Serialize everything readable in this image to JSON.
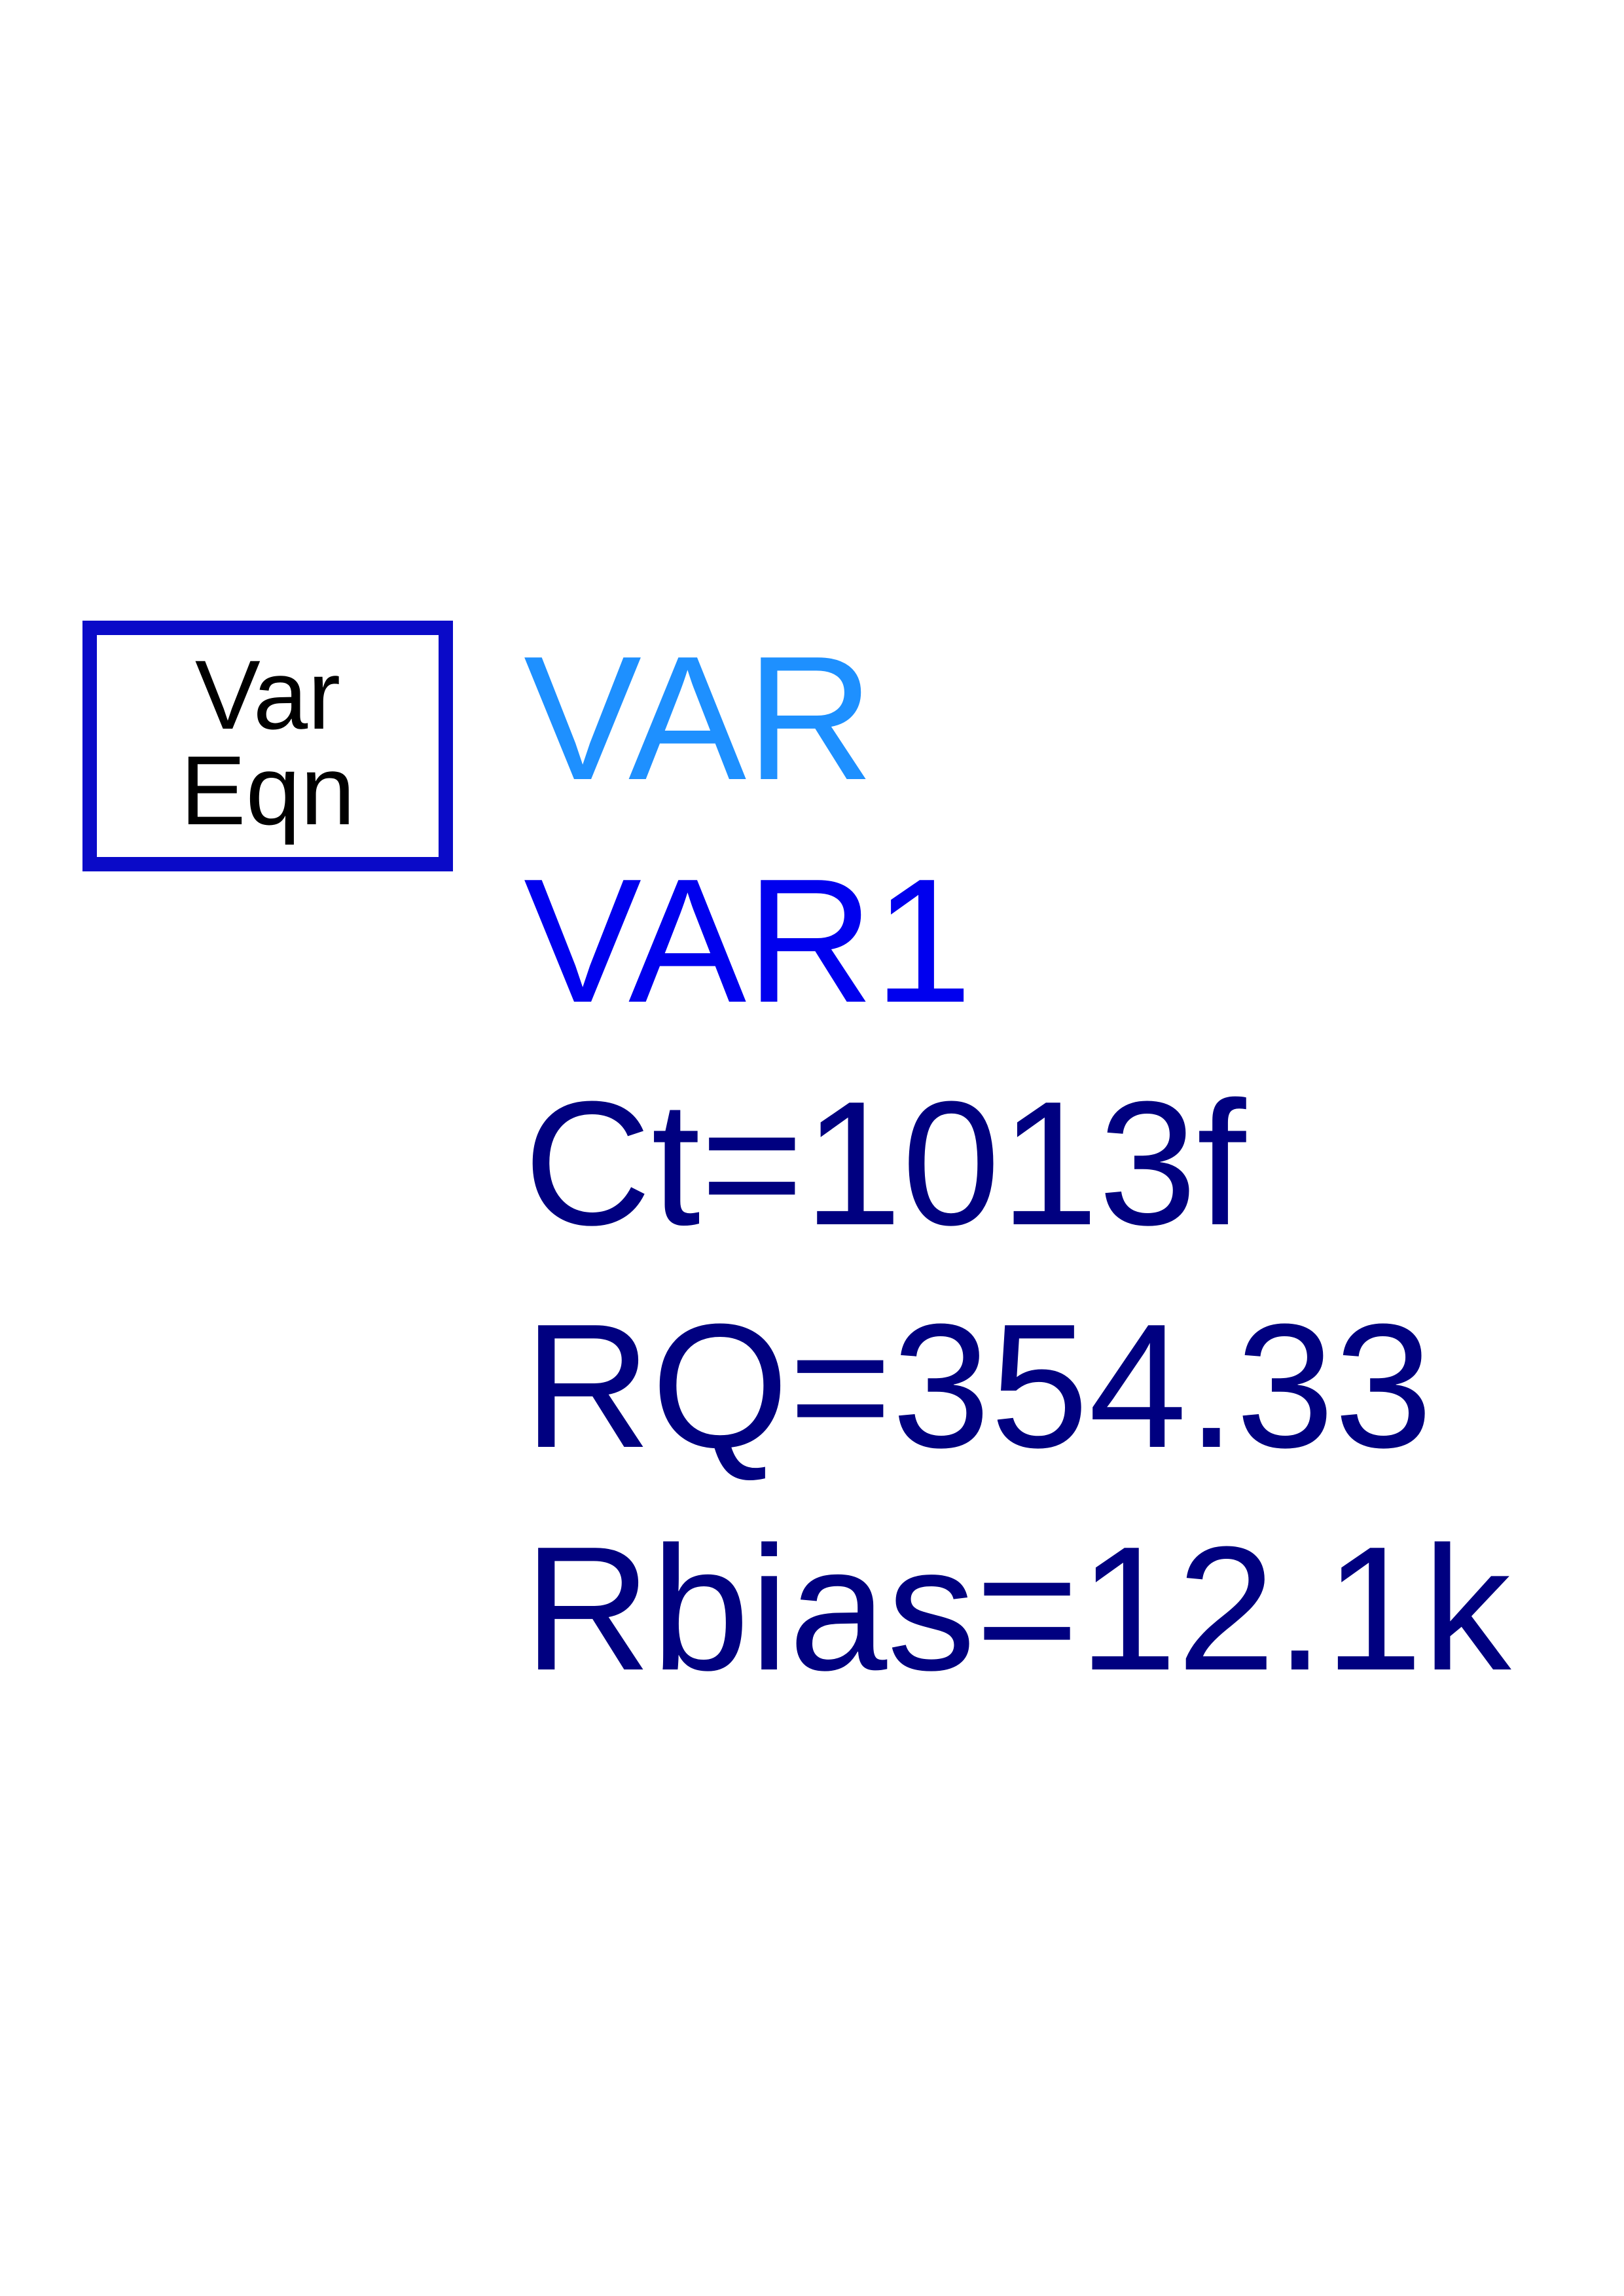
{
  "symbol": {
    "line1": "Var",
    "line2": "Eqn"
  },
  "component_type": "VAR",
  "instance_name": "VAR1",
  "parameters": [
    "Ct=1013f",
    "RQ=354.33",
    "Rbias=12.1k"
  ],
  "colors": {
    "box_border": "#0a0ac8",
    "symbol_text": "#000000",
    "component_type": "#1e90ff",
    "instance_name": "#0000ee",
    "parameters": "#000080"
  }
}
